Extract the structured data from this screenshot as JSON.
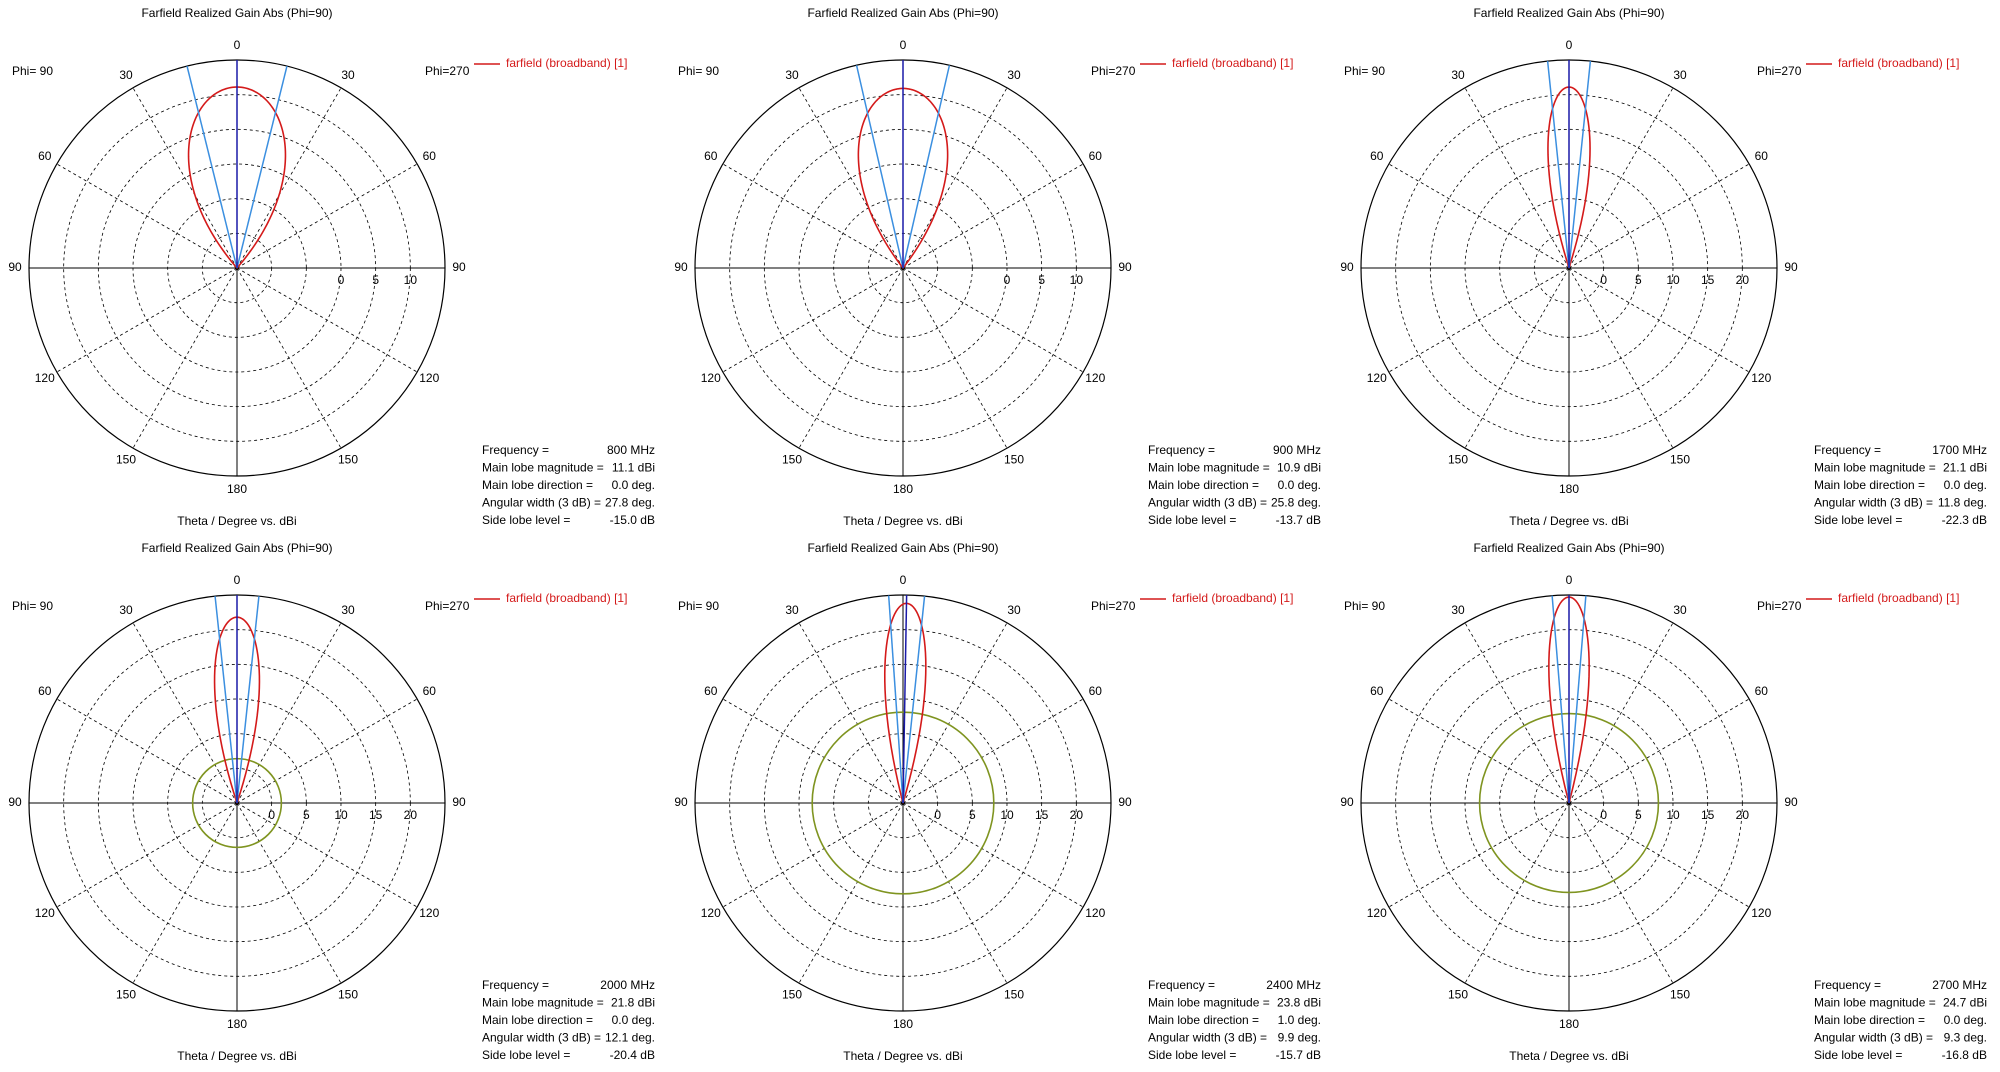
{
  "colors": {
    "pattern": "#d41a1a",
    "beam_edges": "#3b8fe0",
    "main_lobe_direction": "#1a1aa8",
    "side_lobe_level": "#7f9420",
    "grid": "#000000",
    "axes": "#000000"
  },
  "chart_data": [
    {
      "type": "polar-line",
      "title": "Farfield Realized Gain Abs (Phi=90)",
      "xlabel": "Theta / Degree vs. dBi",
      "phi_left": "Phi= 90",
      "phi_right": "Phi=270",
      "legend": {
        "position": "top-right",
        "label": "farfield (broadband) [1]"
      },
      "angle_ticks": [
        "0",
        "30",
        "60",
        "90",
        "120",
        "150",
        "180",
        "150",
        "120",
        "90",
        "60",
        "30"
      ],
      "radial_ticks": [
        "0",
        "5",
        "10"
      ],
      "radial_range_dbi": [
        -15,
        15
      ],
      "rings_dbi": [
        -10,
        -5,
        0,
        5,
        10
      ],
      "grid": true,
      "frequency_mhz": 800,
      "main_lobe_magnitude_dbi": 11.1,
      "main_lobe_direction_deg": 0.0,
      "angular_width_3db_deg": 27.8,
      "side_lobe_level_db": -15.0,
      "info": [
        {
          "label": "Frequency =",
          "value": "800 MHz"
        },
        {
          "label": "Main lobe magnitude =",
          "value": "11.1 dBi"
        },
        {
          "label": "Main lobe direction =",
          "value": "0.0 deg."
        },
        {
          "label": "Angular width (3 dB) =",
          "value": "27.8 deg."
        },
        {
          "label": "Side lobe level =",
          "value": "-15.0 dB"
        }
      ],
      "show_sll_circle": false
    },
    {
      "type": "polar-line",
      "title": "Farfield Realized Gain Abs (Phi=90)",
      "xlabel": "Theta / Degree vs. dBi",
      "phi_left": "Phi= 90",
      "phi_right": "Phi=270",
      "legend": {
        "position": "top-right",
        "label": "farfield (broadband) [1]"
      },
      "angle_ticks": [
        "0",
        "30",
        "60",
        "90",
        "120",
        "150",
        "180",
        "150",
        "120",
        "90",
        "60",
        "30"
      ],
      "radial_ticks": [
        "0",
        "5",
        "10"
      ],
      "radial_range_dbi": [
        -15,
        15
      ],
      "rings_dbi": [
        -10,
        -5,
        0,
        5,
        10
      ],
      "grid": true,
      "frequency_mhz": 900,
      "main_lobe_magnitude_dbi": 10.9,
      "main_lobe_direction_deg": 0.0,
      "angular_width_3db_deg": 25.8,
      "side_lobe_level_db": -13.7,
      "info": [
        {
          "label": "Frequency =",
          "value": "900 MHz"
        },
        {
          "label": "Main lobe magnitude =",
          "value": "10.9 dBi"
        },
        {
          "label": "Main lobe direction =",
          "value": "0.0 deg."
        },
        {
          "label": "Angular width (3 dB) =",
          "value": "25.8 deg."
        },
        {
          "label": "Side lobe level =",
          "value": "-13.7 dB"
        }
      ],
      "show_sll_circle": false
    },
    {
      "type": "polar-line",
      "title": "Farfield Realized Gain Abs (Phi=90)",
      "xlabel": "Theta / Degree vs. dBi",
      "phi_left": "Phi= 90",
      "phi_right": "Phi=270",
      "legend": {
        "position": "top-right",
        "label": "farfield (broadband) [1]"
      },
      "angle_ticks": [
        "0",
        "30",
        "60",
        "90",
        "120",
        "150",
        "180",
        "150",
        "120",
        "90",
        "60",
        "30"
      ],
      "radial_ticks": [
        "0",
        "5",
        "10",
        "15",
        "20"
      ],
      "radial_range_dbi": [
        -5,
        25
      ],
      "rings_dbi": [
        -5,
        0,
        5,
        10,
        15,
        20
      ],
      "grid": true,
      "frequency_mhz": 1700,
      "main_lobe_magnitude_dbi": 21.1,
      "main_lobe_direction_deg": 0.0,
      "angular_width_3db_deg": 11.8,
      "side_lobe_level_db": -22.3,
      "info": [
        {
          "label": "Frequency =",
          "value": "1700 MHz"
        },
        {
          "label": "Main lobe magnitude =",
          "value": "21.1 dBi"
        },
        {
          "label": "Main lobe direction =",
          "value": "0.0 deg."
        },
        {
          "label": "Angular width (3 dB) =",
          "value": "11.8 deg."
        },
        {
          "label": "Side lobe level =",
          "value": "-22.3 dB"
        }
      ],
      "show_sll_circle": false
    },
    {
      "type": "polar-line",
      "title": "Farfield Realized Gain Abs (Phi=90)",
      "xlabel": "Theta / Degree vs. dBi",
      "phi_left": "Phi= 90",
      "phi_right": "Phi=270",
      "legend": {
        "position": "top-right",
        "label": "farfield (broadband) [1]"
      },
      "angle_ticks": [
        "0",
        "30",
        "60",
        "90",
        "120",
        "150",
        "180",
        "150",
        "120",
        "90",
        "60",
        "30"
      ],
      "radial_ticks": [
        "0",
        "5",
        "10",
        "15",
        "20"
      ],
      "radial_range_dbi": [
        -5,
        25
      ],
      "rings_dbi": [
        -5,
        0,
        5,
        10,
        15,
        20
      ],
      "grid": true,
      "frequency_mhz": 2000,
      "main_lobe_magnitude_dbi": 21.8,
      "main_lobe_direction_deg": 0.0,
      "angular_width_3db_deg": 12.1,
      "side_lobe_level_db": -20.4,
      "info": [
        {
          "label": "Frequency =",
          "value": "2000 MHz"
        },
        {
          "label": "Main lobe magnitude =",
          "value": "21.8 dBi"
        },
        {
          "label": "Main lobe direction =",
          "value": "0.0 deg."
        },
        {
          "label": "Angular width (3 dB) =",
          "value": "12.1 deg."
        },
        {
          "label": "Side lobe level =",
          "value": "-20.4 dB"
        }
      ],
      "show_sll_circle": true
    },
    {
      "type": "polar-line",
      "title": "Farfield Realized Gain Abs (Phi=90)",
      "xlabel": "Theta / Degree vs. dBi",
      "phi_left": "Phi= 90",
      "phi_right": "Phi=270",
      "legend": {
        "position": "top-right",
        "label": "farfield (broadband) [1]"
      },
      "angle_ticks": [
        "0",
        "30",
        "60",
        "90",
        "120",
        "150",
        "180",
        "150",
        "120",
        "90",
        "60",
        "30"
      ],
      "radial_ticks": [
        "0",
        "5",
        "10",
        "15",
        "20"
      ],
      "radial_range_dbi": [
        -5,
        25
      ],
      "rings_dbi": [
        -5,
        0,
        5,
        10,
        15,
        20
      ],
      "grid": true,
      "frequency_mhz": 2400,
      "main_lobe_magnitude_dbi": 23.8,
      "main_lobe_direction_deg": 1.0,
      "angular_width_3db_deg": 9.9,
      "side_lobe_level_db": -15.7,
      "info": [
        {
          "label": "Frequency =",
          "value": "2400 MHz"
        },
        {
          "label": "Main lobe magnitude =",
          "value": "23.8 dBi"
        },
        {
          "label": "Main lobe direction =",
          "value": "1.0 deg."
        },
        {
          "label": "Angular width (3 dB) =",
          "value": "9.9 deg."
        },
        {
          "label": "Side lobe level =",
          "value": "-15.7 dB"
        }
      ],
      "show_sll_circle": true
    },
    {
      "type": "polar-line",
      "title": "Farfield Realized Gain Abs (Phi=90)",
      "xlabel": "Theta / Degree vs. dBi",
      "phi_left": "Phi= 90",
      "phi_right": "Phi=270",
      "legend": {
        "position": "top-right",
        "label": "farfield (broadband) [1]"
      },
      "angle_ticks": [
        "0",
        "30",
        "60",
        "90",
        "120",
        "150",
        "180",
        "150",
        "120",
        "90",
        "60",
        "30"
      ],
      "radial_ticks": [
        "0",
        "5",
        "10",
        "15",
        "20"
      ],
      "radial_range_dbi": [
        -5,
        25
      ],
      "rings_dbi": [
        -5,
        0,
        5,
        10,
        15,
        20
      ],
      "grid": true,
      "frequency_mhz": 2700,
      "main_lobe_magnitude_dbi": 24.7,
      "main_lobe_direction_deg": 0.0,
      "angular_width_3db_deg": 9.3,
      "side_lobe_level_db": -16.8,
      "info": [
        {
          "label": "Frequency =",
          "value": "2700 MHz"
        },
        {
          "label": "Main lobe magnitude =",
          "value": "24.7 dBi"
        },
        {
          "label": "Main lobe direction =",
          "value": "0.0 deg."
        },
        {
          "label": "Angular width (3 dB) =",
          "value": "9.3 deg."
        },
        {
          "label": "Side lobe level =",
          "value": "-16.8 dB"
        }
      ],
      "show_sll_circle": true
    }
  ]
}
